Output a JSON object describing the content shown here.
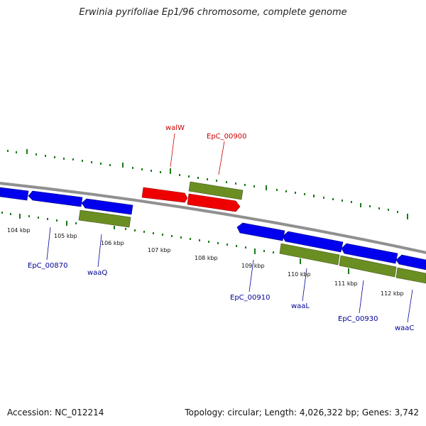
{
  "title": "Erwinia pyrifoliae Ep1/96 chromosome, complete genome",
  "footer": {
    "accession": "Accession: NC_012214",
    "summary": "Topology: circular; Length: 4,026,322 bp; Genes: 3,742"
  },
  "colors": {
    "forward_gene": "#ee0000",
    "forward_gene_alt": "#6b8e23",
    "reverse_gene": "#0000ee",
    "reverse_gene_alt": "#6b8e23",
    "backbone": "#888888",
    "gc_dots": "#1a7a1a",
    "label_red": "#cc0000",
    "label_blue": "#000099"
  },
  "scale": {
    "unit": "kbp",
    "ticks": [
      "104 kbp",
      "105 kbp",
      "106 kbp",
      "107 kbp",
      "108 kbp",
      "109 kbp",
      "110 kbp",
      "111 kbp",
      "112 kbp"
    ]
  },
  "gene_labels": {
    "walW": "walW",
    "EpC_00900": "EpC_00900",
    "EpC_00870": "EpC_00870",
    "waaQ": "waaQ",
    "EpC_00910": "EpC_00910",
    "waaL": "waaL",
    "EpC_00930": "EpC_00930",
    "waaC": "waaC"
  }
}
